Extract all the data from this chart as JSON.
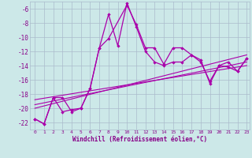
{
  "xlabel": "Windchill (Refroidissement éolien,°C)",
  "background_color": "#cce8e8",
  "grid_color": "#aabbcc",
  "line_color": "#aa00aa",
  "xlim": [
    -0.5,
    23.3
  ],
  "ylim": [
    -23.0,
    -5.0
  ],
  "yticks": [
    -22,
    -20,
    -18,
    -16,
    -14,
    -12,
    -10,
    -8,
    -6
  ],
  "xticks": [
    0,
    1,
    2,
    3,
    4,
    5,
    6,
    7,
    8,
    9,
    10,
    11,
    12,
    13,
    14,
    15,
    16,
    17,
    18,
    19,
    20,
    21,
    22,
    23
  ],
  "series1_x": [
    0,
    1,
    2,
    3,
    4,
    5,
    6,
    7,
    8,
    10,
    11,
    12,
    13,
    14,
    15,
    16,
    17,
    18,
    19,
    20,
    21,
    22,
    23
  ],
  "series1_y": [
    -21.5,
    -22.2,
    -18.5,
    -18.5,
    -20.5,
    -20.0,
    -17.2,
    -11.5,
    -10.2,
    -5.5,
    -8.2,
    -11.5,
    -11.5,
    -13.8,
    -11.5,
    -11.5,
    -12.5,
    -13.2,
    -16.5,
    -14.0,
    -14.2,
    -14.8,
    -13.0
  ],
  "series2_x": [
    0,
    1,
    2,
    3,
    4,
    5,
    6,
    7,
    8,
    9,
    10,
    11,
    12,
    13,
    14,
    15,
    16,
    17,
    18,
    19,
    20,
    21,
    22,
    23
  ],
  "series2_y": [
    -21.5,
    -22.2,
    -18.5,
    -20.5,
    -20.2,
    -20.0,
    -17.2,
    -11.5,
    -6.8,
    -11.2,
    -5.2,
    -8.5,
    -12.0,
    -13.5,
    -14.0,
    -13.5,
    -13.5,
    -12.5,
    -13.5,
    -16.2,
    -14.0,
    -13.5,
    -14.8,
    -13.0
  ],
  "line1_x": [
    0,
    23
  ],
  "line1_y": [
    -19.5,
    -13.5
  ],
  "line2_x": [
    0,
    23
  ],
  "line2_y": [
    -18.8,
    -14.0
  ],
  "line3_x": [
    0,
    23
  ],
  "line3_y": [
    -20.0,
    -12.5
  ]
}
